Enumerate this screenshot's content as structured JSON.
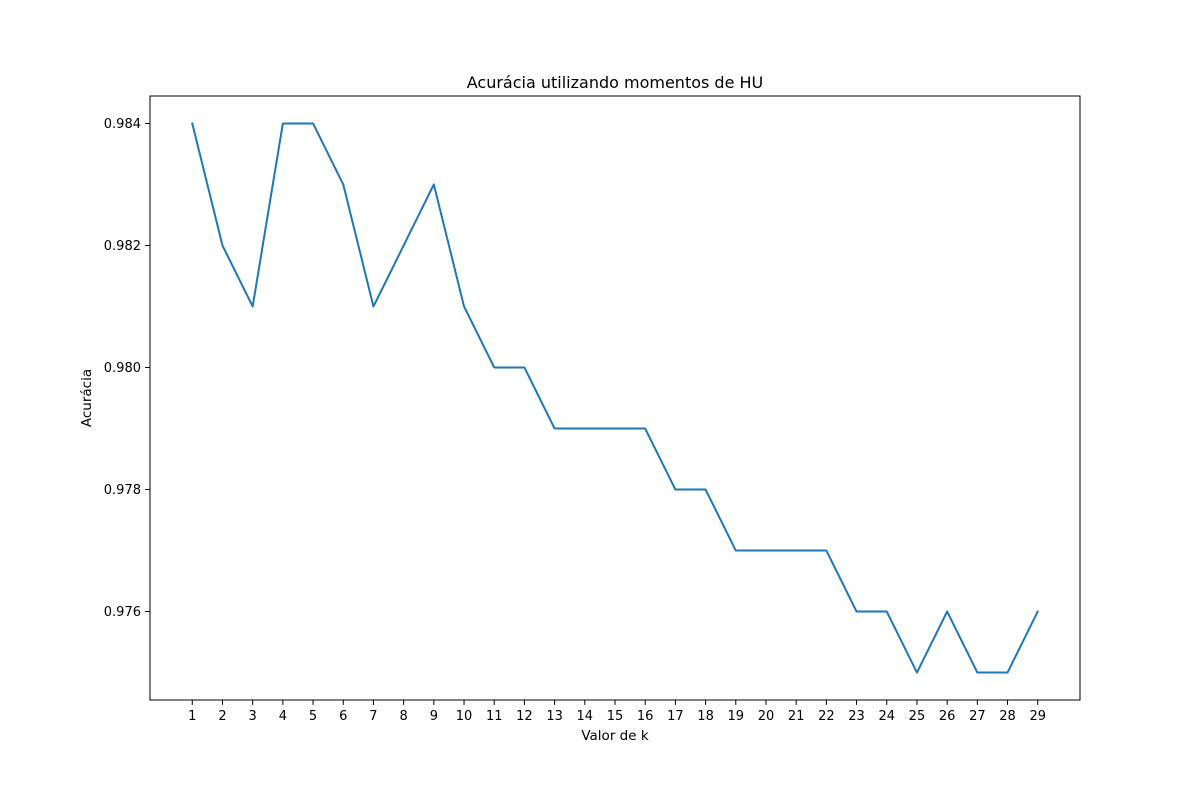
{
  "chart_data": {
    "type": "line",
    "title": "Acurácia utilizando momentos de HU",
    "xlabel": "Valor de k",
    "ylabel": "Acurácia",
    "x": [
      1,
      2,
      3,
      4,
      5,
      6,
      7,
      8,
      9,
      10,
      11,
      12,
      13,
      14,
      15,
      16,
      17,
      18,
      19,
      20,
      21,
      22,
      23,
      24,
      25,
      26,
      27,
      28,
      29
    ],
    "series": [
      {
        "values": [
          0.984,
          0.982,
          0.981,
          0.984,
          0.984,
          0.983,
          0.981,
          0.982,
          0.983,
          0.981,
          0.98,
          0.98,
          0.979,
          0.979,
          0.979,
          0.979,
          0.978,
          0.978,
          0.977,
          0.977,
          0.977,
          0.977,
          0.976,
          0.976,
          0.975,
          0.976,
          0.975,
          0.975,
          0.976
        ],
        "color": "#1f77b4"
      }
    ],
    "xticks": [
      "1",
      "2",
      "3",
      "4",
      "5",
      "6",
      "7",
      "8",
      "9",
      "10",
      "11",
      "12",
      "13",
      "14",
      "15",
      "16",
      "17",
      "18",
      "19",
      "20",
      "21",
      "22",
      "23",
      "24",
      "25",
      "26",
      "27",
      "28",
      "29"
    ],
    "yticks": [
      0.976,
      0.978,
      0.98,
      0.982,
      0.984
    ],
    "ytick_labels": [
      "0.976",
      "0.978",
      "0.980",
      "0.982",
      "0.984"
    ],
    "xlim": [
      -0.4,
      30.4
    ],
    "ylim": [
      0.97455,
      0.98445
    ],
    "grid": false,
    "legend": "none"
  }
}
